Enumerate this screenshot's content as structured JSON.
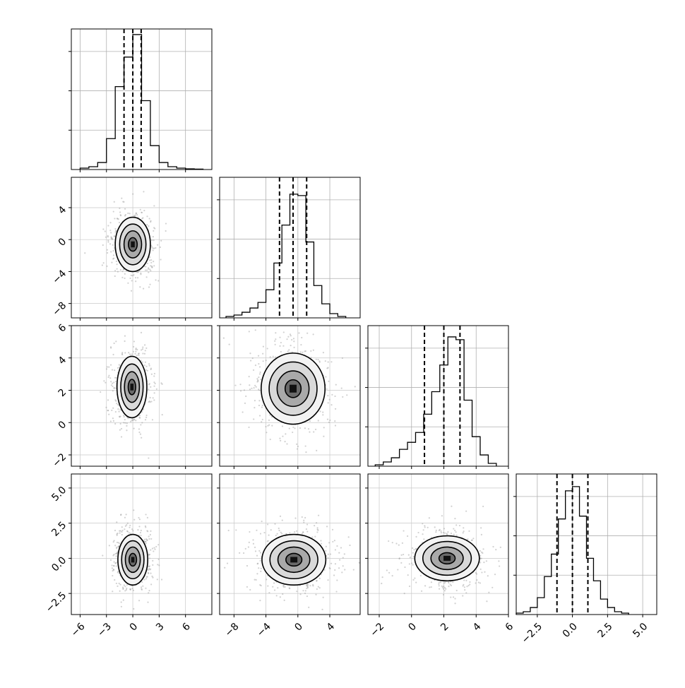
{
  "chart_data": {
    "type": "corner",
    "grid": true,
    "parameters": [
      {
        "range": [
          -7.0,
          9.0
        ],
        "ticks": [
          -6,
          -3,
          0,
          3,
          6
        ],
        "tick_labels": [
          "−6",
          "−3",
          "0",
          "3",
          "6"
        ],
        "quantiles": [
          -1.0,
          0.0,
          0.95
        ],
        "hist_edges": [
          -6.0,
          -5.0,
          -4.0,
          -3.0,
          -2.0,
          -1.0,
          0.0,
          1.0,
          2.0,
          3.0,
          4.0,
          5.0,
          6.0,
          7.0,
          8.0
        ],
        "hist_heights": [
          0.01,
          0.02,
          0.05,
          0.22,
          0.59,
          0.8,
          0.96,
          0.49,
          0.17,
          0.05,
          0.02,
          0.01,
          0.005,
          0.003
        ]
      },
      {
        "range": [
          -9.8,
          7.8
        ],
        "ticks": [
          -8,
          -4,
          0,
          4
        ],
        "tick_labels": [
          "−8",
          "−4",
          "0",
          "4"
        ],
        "quantiles": [
          -2.3,
          -0.6,
          1.1
        ],
        "hist_edges": [
          -9.0,
          -8.0,
          -7.0,
          -6.0,
          -5.0,
          -4.0,
          -3.0,
          -2.0,
          -1.0,
          0.0,
          1.0,
          2.0,
          3.0,
          4.0,
          5.0,
          6.0
        ],
        "hist_heights": [
          0.01,
          0.02,
          0.04,
          0.07,
          0.11,
          0.2,
          0.39,
          0.66,
          0.88,
          0.87,
          0.54,
          0.23,
          0.1,
          0.03,
          0.01
        ]
      },
      {
        "range": [
          -2.7,
          6.0
        ],
        "ticks": [
          -2,
          0,
          2,
          4,
          6
        ],
        "tick_labels": [
          "−2",
          "0",
          "2",
          "4",
          "6"
        ],
        "quantiles": [
          0.8,
          2.0,
          3.0
        ],
        "hist_edges": [
          -2.25,
          -1.75,
          -1.25,
          -0.75,
          -0.25,
          0.25,
          0.75,
          1.25,
          1.75,
          2.25,
          2.75,
          3.25,
          3.75,
          4.25,
          4.75,
          5.25
        ],
        "hist_heights": [
          0.01,
          0.03,
          0.06,
          0.12,
          0.17,
          0.24,
          0.37,
          0.53,
          0.72,
          0.92,
          0.9,
          0.47,
          0.21,
          0.08,
          0.02
        ]
      },
      {
        "range": [
          -4.0,
          6.0
        ],
        "ticks": [
          -2.5,
          0.0,
          2.5,
          5.0
        ],
        "tick_labels": [
          "−2.5",
          "0.0",
          "2.5",
          "5.0"
        ],
        "quantiles": [
          -1.1,
          0.0,
          1.1
        ],
        "hist_edges": [
          -4.0,
          -3.5,
          -3.0,
          -2.5,
          -2.0,
          -1.5,
          -1.0,
          -0.5,
          0.0,
          0.5,
          1.0,
          1.5,
          2.0,
          2.5,
          3.0,
          3.5,
          4.0
        ],
        "hist_heights": [
          0.01,
          0.02,
          0.05,
          0.12,
          0.27,
          0.43,
          0.68,
          0.88,
          0.91,
          0.7,
          0.4,
          0.24,
          0.11,
          0.05,
          0.02,
          0.01
        ]
      }
    ],
    "pairs": [
      {
        "x": 0,
        "y": 1,
        "mean": [
          0.0,
          -0.6
        ],
        "sd": [
          1.0,
          1.7
        ],
        "contours": [
          0.5,
          1.0,
          1.5,
          2.0
        ]
      },
      {
        "x": 0,
        "y": 2,
        "mean": [
          -0.1,
          2.2
        ],
        "sd": [
          0.85,
          0.95
        ],
        "contours": [
          0.5,
          1.0,
          1.5,
          2.0
        ]
      },
      {
        "x": 1,
        "y": 2,
        "mean": [
          -0.6,
          2.1
        ],
        "sd": [
          2.0,
          1.1
        ],
        "contours": [
          0.5,
          1.0,
          1.5,
          2.0
        ]
      },
      {
        "x": 0,
        "y": 3,
        "mean": [
          0.0,
          -0.1
        ],
        "sd": [
          0.85,
          0.9
        ],
        "contours": [
          0.5,
          1.0,
          1.5,
          2.0
        ]
      },
      {
        "x": 1,
        "y": 3,
        "mean": [
          -0.5,
          -0.1
        ],
        "sd": [
          2.0,
          0.9
        ],
        "contours": [
          0.5,
          1.0,
          1.5,
          2.0
        ]
      },
      {
        "x": 2,
        "y": 3,
        "mean": [
          2.2,
          0.0
        ],
        "sd": [
          1.0,
          0.8
        ],
        "contours": [
          0.5,
          1.0,
          1.5,
          2.0
        ]
      }
    ]
  }
}
